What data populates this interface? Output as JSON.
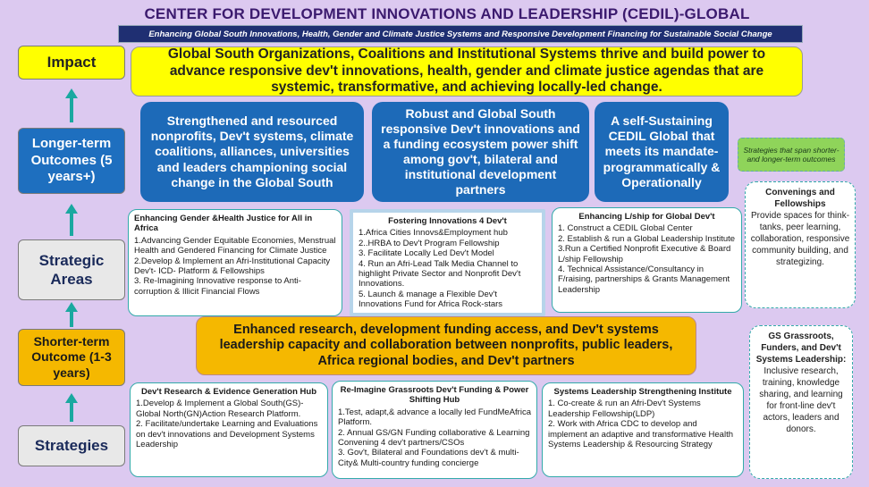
{
  "header": {
    "title": "CENTER FOR DEVELOPMENT INNOVATIONS AND LEADERSHIP (CEDIL)-GLOBAL",
    "subtitle": "Enhancing Global South Innovations, Health, Gender and Climate Justice Systems and Responsive Development Financing for Sustainable Social Change"
  },
  "levels": {
    "impact": "Impact",
    "longer_term": "Longer-term Outcomes (5 years+)",
    "strategic_areas": "Strategic Areas",
    "shorter_term": "Shorter-term Outcome (1-3 years)",
    "strategies": "Strategies"
  },
  "impact": "Global South Organizations, Coalitions and Institutional Systems thrive and build power to advance responsive dev't innovations, health, gender and climate justice agendas that are systemic,  transformative, and achieving locally-led change.",
  "longer_term_outcomes": [
    "Strengthened and resourced nonprofits, Dev't systems, climate coalitions, alliances, universities and leaders championing social change in the Global South",
    "Robust and Global South responsive Dev't innovations and a funding ecosystem power shift among gov't, bilateral and institutional development partners",
    "A self-Sustaining CEDIL Global that meets its mandate- programmatically & Operationally"
  ],
  "span_tag": "Strategies that span shorter- and longer-term outcomes",
  "strategic_areas": [
    {
      "title": "Enhancing Gender &Health Justice for All in Africa",
      "items": [
        "1.Advancing Gender Equitable Economies, Menstrual Health and Gendered Financing  for Climate Justice",
        "2.Develop & Implement an Afri-Institutional Capacity Dev't- ICD- Platform &  Fellowships",
        "3. Re-Imagining Innovative response to Anti-corruption & Illicit Financial Flows"
      ]
    },
    {
      "title": "Fostering Innovations 4 Dev't",
      "items": [
        "1.Africa Cities Innovs&Employment hub",
        "2..HRBA to Dev't Program Fellowship",
        "3. Facilitate Locally Led Dev't Model",
        "4. Run an Afri-Lead Talk Media Channel to highlight Private Sector and Nonprofit Dev't Innovations.",
        "5. Launch & manage a Flexible Dev't Innovations Fund for Africa Rock-stars"
      ]
    },
    {
      "title": "Enhancing L/ship for Global Dev't",
      "items": [
        "1. Construct a CEDIL Global Center",
        "2. Establish & run a Global Leadership Institute",
        "3.Run a Certified Nonprofit Executive & Board L/ship Fellowship",
        "4. Technical Assistance/Consultancy in  F/raising, partnerships & Grants Management Leadership"
      ]
    }
  ],
  "side_boxes": [
    {
      "title": "Convenings and Fellowships",
      "text": "Provide spaces for think-tanks, peer learning, collaboration, responsive community building, and strategizing."
    },
    {
      "title": "GS Grassroots, Funders, and Dev't Systems Leadership:",
      "text": "Inclusive research, training, knowledge sharing, and learning for front-line dev't actors, leaders and donors."
    }
  ],
  "shorter_term_outcome": "Enhanced research, development funding access, and Dev't systems leadership capacity and collaboration between nonprofits, public leaders, Africa regional bodies, and Dev't partners",
  "strategies": [
    {
      "title": "Dev't Research & Evidence Generation Hub",
      "items": [
        "1.Develop & Implement a Global South(GS)-Global North(GN)Action Research Platform.",
        "2. Facilitate/undertake Learning and Evaluations on dev't innovations and Development Systems Leadership"
      ]
    },
    {
      "title": "Re-Imagine Grassroots Dev't Funding & Power Shifting Hub",
      "items": [
        "1.Test, adapt,& advance a locally led FundMeAfrica Platform.",
        "2. Annual GS/GN Funding collaborative & Learning Convening 4 dev't partners/CSOs",
        "3. Gov't, Bilateral and Foundations dev't & multi-City& Multi-country funding concierge"
      ]
    },
    {
      "title": "Systems Leadership Strengthening Institute",
      "items": [
        "1. Co-create & run an Afri-Dev't Systems Leadership Fellowship(LDP)",
        "2. Work with Africa CDC to develop and implement an adaptive and transformative Health Systems Leadership & Resourcing Strategy"
      ]
    }
  ]
}
